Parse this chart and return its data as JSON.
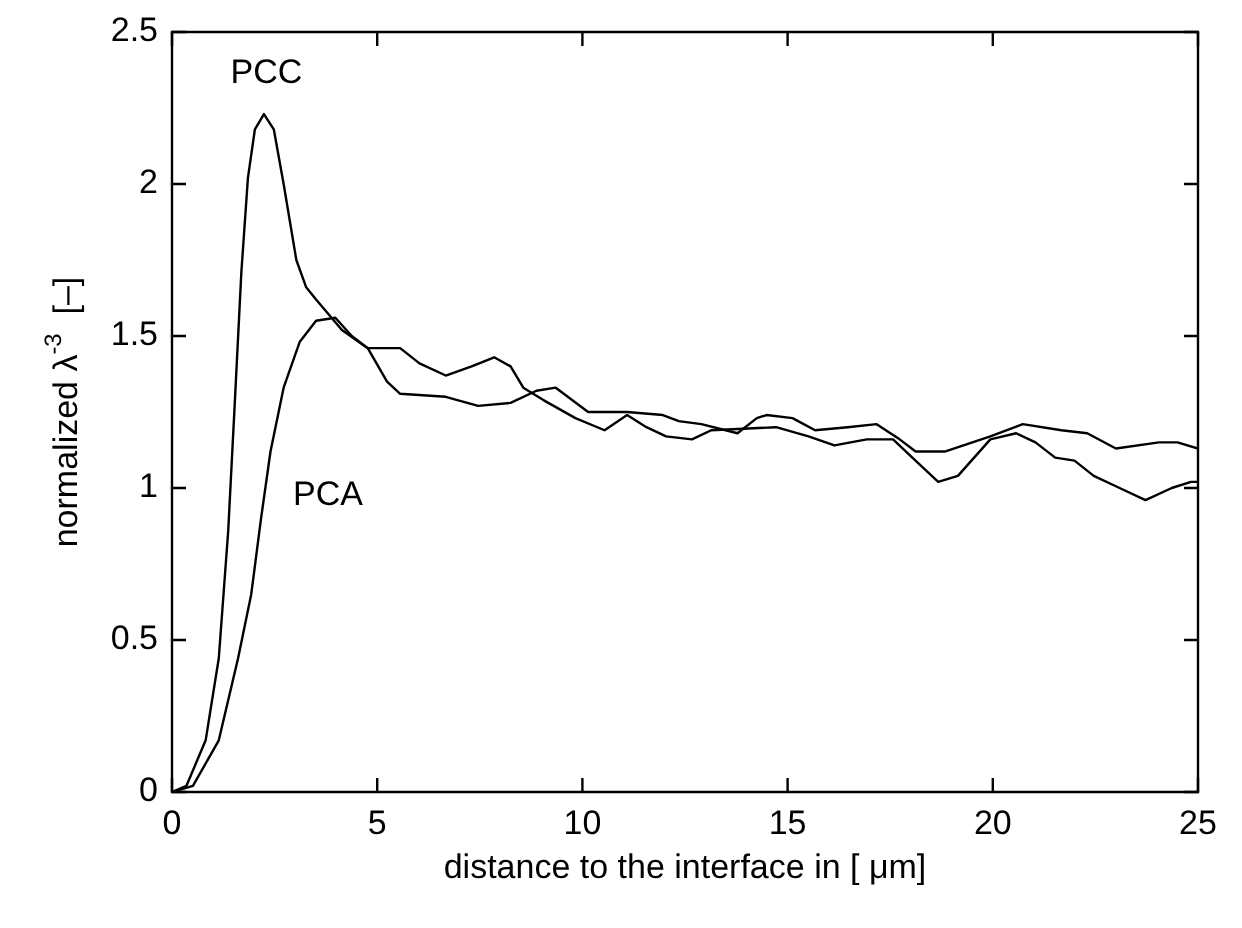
{
  "chart_data": {
    "type": "line",
    "xlabel": "distance to the interface in [ μm]",
    "ylabel": "normalized λ$^{-3}$  [–]",
    "xlim": [
      0,
      25
    ],
    "xticks": [
      0,
      5,
      10,
      15,
      20,
      25
    ],
    "ylim": [
      0,
      2.5
    ],
    "yticks": [
      0,
      {
        "value": 0.5,
        "label": "0.5"
      },
      1,
      {
        "value": 1.5,
        "label": "1.5"
      },
      2,
      {
        "value": 2.5,
        "label": "2.5"
      }
    ],
    "grid": false,
    "legend": false,
    "marker": "none",
    "line_style": "solid",
    "series": [
      {
        "color": "#000000",
        "x": [
          0,
          0.35,
          0.82,
          1.14,
          1.37,
          1.53,
          1.69,
          1.85,
          2.02,
          2.24,
          2.48,
          2.72,
          3.03,
          3.27,
          3.51,
          4.14,
          4.77,
          5.24,
          5.56,
          6.67,
          7.46,
          8.25,
          8.88,
          9.35,
          10.14,
          11.09,
          11.96,
          12.35,
          12.9,
          13.78,
          14.25,
          14.49,
          15.12,
          15.67,
          16.46,
          17.17,
          17.73,
          18.12,
          18.83,
          19.94,
          20.73,
          21.67,
          22.3,
          23.0,
          24.05,
          24.5,
          25
        ],
        "values": [
          0,
          0.02,
          0.17,
          0.44,
          0.86,
          1.28,
          1.71,
          2.02,
          2.18,
          2.23,
          2.18,
          2.0,
          1.75,
          1.66,
          1.62,
          1.52,
          1.46,
          1.35,
          1.31,
          1.3,
          1.27,
          1.28,
          1.32,
          1.33,
          1.25,
          1.25,
          1.24,
          1.22,
          1.21,
          1.18,
          1.23,
          1.24,
          1.23,
          1.19,
          1.2,
          1.21,
          1.16,
          1.12,
          1.12,
          1.17,
          1.21,
          1.19,
          1.18,
          1.13,
          1.15,
          1.15,
          1.13
        ]
      },
      {
        "color": "#000000",
        "x": [
          0,
          0.51,
          1.14,
          1.61,
          1.93,
          2.17,
          2.4,
          2.72,
          3.11,
          3.51,
          3.98,
          4.38,
          4.77,
          5.56,
          6.03,
          6.67,
          7.3,
          7.85,
          8.25,
          8.56,
          9.04,
          9.83,
          10.54,
          11.09,
          11.56,
          12.04,
          12.67,
          13.14,
          14.72,
          15.51,
          16.14,
          16.93,
          17.57,
          18.04,
          18.67,
          19.15,
          19.94,
          20.57,
          21.04,
          21.52,
          21.99,
          22.46,
          23.09,
          23.72,
          24.36,
          24.83,
          25
        ],
        "values": [
          0,
          0.02,
          0.17,
          0.44,
          0.65,
          0.9,
          1.12,
          1.33,
          1.48,
          1.55,
          1.56,
          1.5,
          1.46,
          1.46,
          1.41,
          1.37,
          1.4,
          1.43,
          1.4,
          1.33,
          1.29,
          1.23,
          1.19,
          1.24,
          1.2,
          1.17,
          1.16,
          1.19,
          1.2,
          1.17,
          1.14,
          1.16,
          1.16,
          1.1,
          1.02,
          1.04,
          1.16,
          1.18,
          1.15,
          1.1,
          1.09,
          1.04,
          1.0,
          0.96,
          1.0,
          1.02,
          1.02
        ]
      }
    ],
    "annotations": [
      "PCC",
      "PCA"
    ]
  }
}
